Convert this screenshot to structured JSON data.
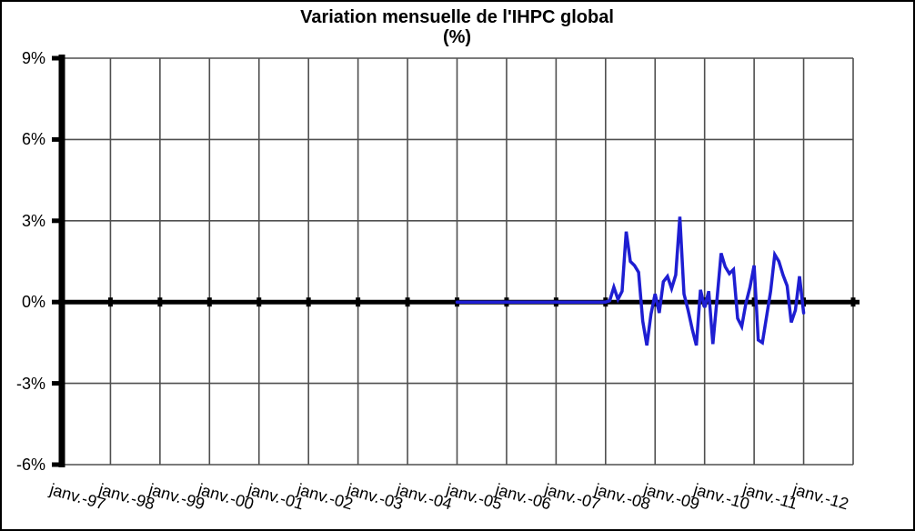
{
  "chart_data": {
    "type": "line",
    "title": "Variation mensuelle de l'IHPC global",
    "subtitle": "(%)",
    "xlabel": "",
    "ylabel": "",
    "ylim": [
      -6,
      9
    ],
    "y_ticks": [
      9,
      6,
      3,
      0,
      -3,
      -6
    ],
    "y_tick_labels": [
      "9%",
      "6%",
      "3%",
      "0%",
      "-3%",
      "-6%"
    ],
    "x_tick_labels": [
      "janv.-97",
      "janv.-98",
      "janv.-99",
      "janv.-00",
      "janv.-01",
      "janv.-02",
      "janv.-03",
      "janv.-04",
      "janv.-05",
      "janv.-06",
      "janv.-07",
      "janv.-08",
      "janv.-09",
      "janv.-10",
      "janv.-11",
      "janv.-12"
    ],
    "grid": true,
    "legend": false,
    "frequency": "monthly",
    "series": [
      {
        "name": "Variation mensuelle de l'IHPC global (%)",
        "color": "#1e1ed2",
        "start_x_label": "janv.-05",
        "points_per_interval": 12,
        "values": [
          0,
          0,
          0,
          0,
          0,
          0,
          0,
          0,
          0,
          0,
          0,
          0,
          0,
          0,
          0,
          0,
          0,
          0,
          0,
          0,
          0,
          0,
          0,
          0,
          0,
          0,
          0,
          0,
          0,
          0,
          0,
          0,
          0,
          0,
          0,
          0,
          0,
          0.05,
          0.55,
          0.1,
          0.4,
          2.6,
          1.5,
          1.35,
          1.1,
          -0.7,
          -1.6,
          -0.45,
          0.3,
          -0.4,
          0.75,
          0.95,
          0.5,
          1.0,
          3.15,
          0.3,
          -0.3,
          -1.0,
          -1.6,
          0.45,
          -0.2,
          0.4,
          -1.55,
          0.1,
          1.8,
          1.3,
          1.05,
          1.2,
          -0.6,
          -0.9,
          -0.05,
          0.55,
          1.35,
          -1.4,
          -1.5,
          -0.55,
          0.4,
          1.75,
          1.5,
          1.0,
          0.6,
          -0.75,
          -0.3,
          0.95,
          -0.4
        ]
      }
    ],
    "colors": {
      "background": "#ffffff",
      "axis": "#000000",
      "gridline": "#4f4f4f",
      "series_line": "#1e1ed2",
      "text": "#000000"
    }
  }
}
